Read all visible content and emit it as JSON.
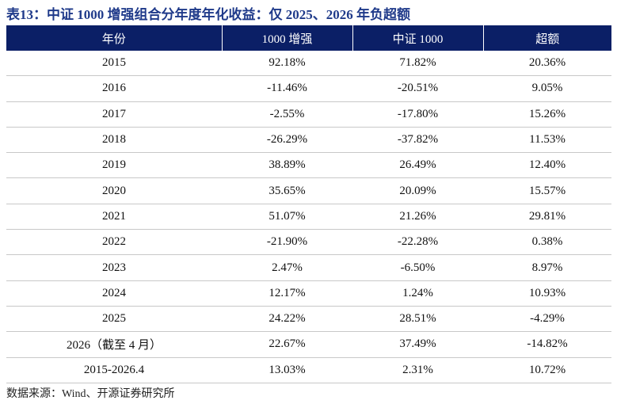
{
  "title": "表13：中证 1000 增强组合分年度年化收益：仅 2025、2026 年负超额",
  "table": {
    "header": [
      "年份",
      "1000 增强",
      "中证 1000",
      "超额"
    ],
    "rows": [
      [
        "2015",
        "92.18%",
        "71.82%",
        "20.36%"
      ],
      [
        "2016",
        "-11.46%",
        "-20.51%",
        "9.05%"
      ],
      [
        "2017",
        "-2.55%",
        "-17.80%",
        "15.26%"
      ],
      [
        "2018",
        "-26.29%",
        "-37.82%",
        "11.53%"
      ],
      [
        "2019",
        "38.89%",
        "26.49%",
        "12.40%"
      ],
      [
        "2020",
        "35.65%",
        "20.09%",
        "15.57%"
      ],
      [
        "2021",
        "51.07%",
        "21.26%",
        "29.81%"
      ],
      [
        "2022",
        "-21.90%",
        "-22.28%",
        "0.38%"
      ],
      [
        "2023",
        "2.47%",
        "-6.50%",
        "8.97%"
      ],
      [
        "2024",
        "12.17%",
        "1.24%",
        "10.93%"
      ],
      [
        "2025",
        "24.22%",
        "28.51%",
        "-4.29%"
      ],
      [
        "2026（截至 4 月）",
        "22.67%",
        "37.49%",
        "-14.82%"
      ],
      [
        "2015-2026.4",
        "13.03%",
        "2.31%",
        "10.72%"
      ]
    ]
  },
  "source": "数据来源：Wind、开源证券研究所"
}
